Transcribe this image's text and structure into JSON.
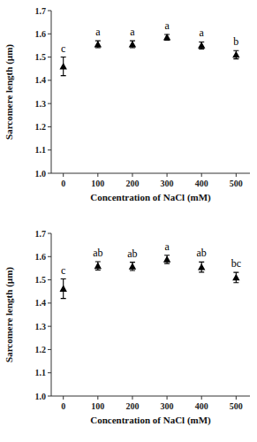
{
  "chart_data": [
    {
      "type": "scatter",
      "x": [
        0,
        100,
        200,
        300,
        400,
        500
      ],
      "values": [
        1.46,
        1.555,
        1.555,
        1.585,
        1.55,
        1.51
      ],
      "errors": [
        0.04,
        0.015,
        0.015,
        0.012,
        0.015,
        0.018
      ],
      "annotations": [
        "c",
        "a",
        "a",
        "a",
        "a",
        "b"
      ],
      "x_label": "Concentration of NaCl (mM)",
      "y_label": "Sarcomere length (µm)",
      "xlim": [
        -35,
        540
      ],
      "xticks": [
        0,
        100,
        200,
        300,
        400,
        500
      ],
      "ylim": [
        1.0,
        1.7
      ],
      "yticks": [
        {
          "value": 1.0,
          "label": "1.0"
        },
        1.1,
        1.2,
        1.3,
        1.4,
        1.5,
        1.6,
        1.7
      ],
      "color": "#000000",
      "marker": "triangle",
      "grid": false
    },
    {
      "type": "scatter",
      "x": [
        0,
        100,
        200,
        300,
        400,
        500
      ],
      "values": [
        1.462,
        1.56,
        1.558,
        1.588,
        1.555,
        1.51
      ],
      "errors": [
        0.042,
        0.018,
        0.018,
        0.018,
        0.022,
        0.022
      ],
      "annotations": [
        "c",
        "ab",
        "ab",
        "a",
        "ab",
        "bc"
      ],
      "x_label": "Concentration of NaCl (mM)",
      "y_label": "Sarcomere length (µm)",
      "xlim": [
        -35,
        540
      ],
      "xticks": [
        0,
        100,
        200,
        300,
        400,
        500
      ],
      "ylim": [
        1.0,
        1.7
      ],
      "yticks": [
        {
          "value": 1.0,
          "label": "1.0"
        },
        1.1,
        1.2,
        1.3,
        1.4,
        1.5,
        1.6,
        1.7
      ],
      "color": "#000000",
      "marker": "triangle",
      "grid": false
    }
  ]
}
